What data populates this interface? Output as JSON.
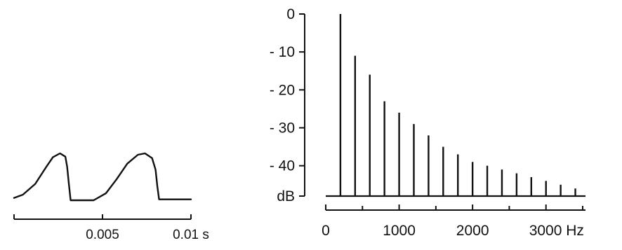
{
  "chart_data": [
    {
      "type": "line",
      "title": "",
      "xlabel": "",
      "ylabel": "",
      "x_unit": "s",
      "xlim": [
        0,
        0.01
      ],
      "x_ticks": [
        {
          "value": 0.005,
          "label": "0.005"
        },
        {
          "value": 0.01,
          "label": "0.01 s"
        }
      ],
      "grid": false,
      "legend": "none",
      "series": [
        {
          "x": [
            0,
            0.0005,
            0.0012,
            0.0018,
            0.0022,
            0.0026,
            0.0029,
            0.003,
            0.0031,
            0.0032,
            0.0045,
            0.0052,
            0.0058,
            0.0064,
            0.007,
            0.0074,
            0.0078,
            0.008,
            0.0081,
            0.0082,
            0.01
          ],
          "y": [
            0.05,
            0.12,
            0.35,
            0.7,
            0.92,
            1.0,
            0.93,
            0.72,
            0.35,
            0.0,
            0.0,
            0.15,
            0.45,
            0.78,
            0.97,
            1.0,
            0.9,
            0.65,
            0.3,
            0.02,
            0.02
          ]
        }
      ]
    },
    {
      "type": "bar",
      "title": "",
      "xlabel": "",
      "ylabel": "dB",
      "x_unit": "Hz",
      "xlim": [
        0,
        3500
      ],
      "ylim": [
        -48,
        0
      ],
      "x_ticks": [
        {
          "value": 0,
          "label": "0"
        },
        {
          "value": 1000,
          "label": "1000"
        },
        {
          "value": 2000,
          "label": "2000"
        },
        {
          "value": 3000,
          "label": "3000 Hz"
        }
      ],
      "x_minor_ticks": [
        500,
        1500,
        2500,
        3500
      ],
      "y_ticks": [
        {
          "value": 0,
          "label": "0"
        },
        {
          "value": -10,
          "label": "- 10"
        },
        {
          "value": -20,
          "label": "- 20"
        },
        {
          "value": -30,
          "label": "- 30"
        },
        {
          "value": -40,
          "label": "- 40"
        },
        {
          "value": -48,
          "label": "dB"
        }
      ],
      "grid": false,
      "legend": "none",
      "x": [
        200,
        400,
        600,
        800,
        1000,
        1200,
        1400,
        1600,
        1800,
        2000,
        2200,
        2400,
        2600,
        2800,
        3000,
        3200,
        3400
      ],
      "values": [
        0,
        -11,
        -16,
        -23,
        -26,
        -29,
        -32,
        -35,
        -37,
        -39,
        -40,
        -41,
        -42,
        -43,
        -44,
        -45,
        -46
      ]
    }
  ]
}
